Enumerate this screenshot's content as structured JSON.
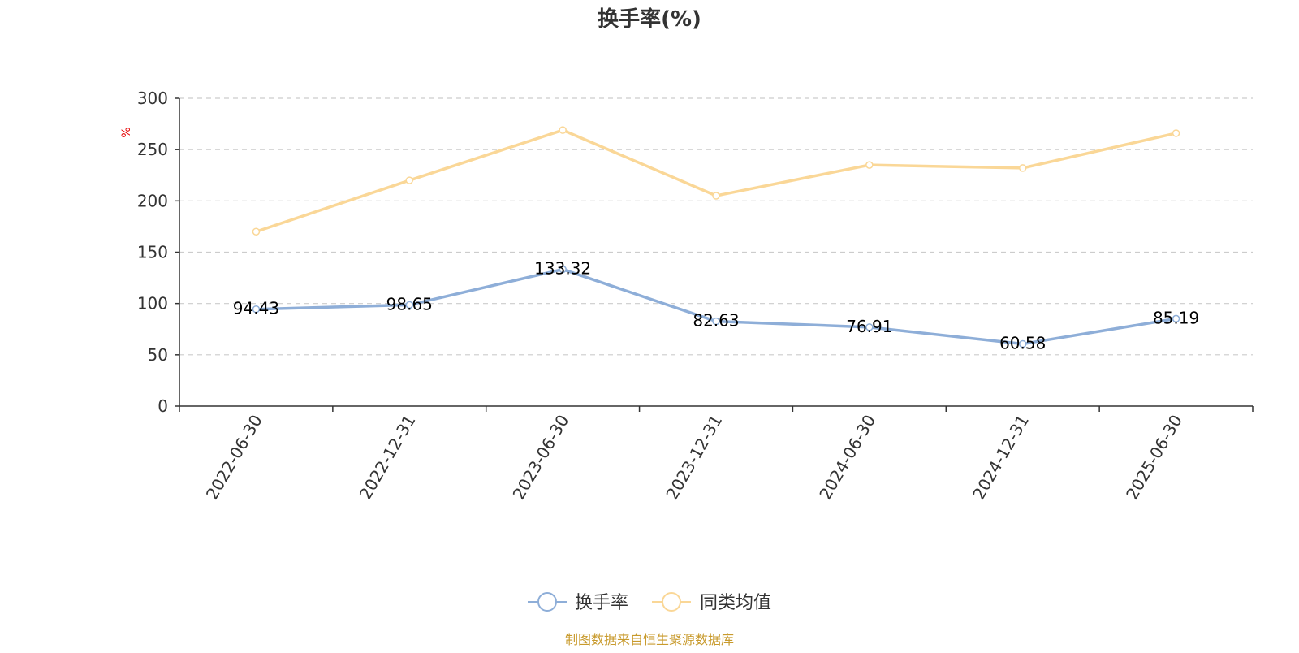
{
  "chart_data": {
    "type": "line",
    "title": "换手率(%)",
    "unit_label": "%",
    "categories": [
      "2022-06-30",
      "2022-12-31",
      "2023-06-30",
      "2023-12-31",
      "2024-06-30",
      "2024-12-31",
      "2025-06-30"
    ],
    "series": [
      {
        "name": "换手率",
        "color": "#8eaed8",
        "values": [
          94.43,
          98.65,
          133.32,
          82.63,
          76.91,
          60.58,
          85.19
        ],
        "data_labels": [
          "94.43",
          "98.65",
          "133.32",
          "82.63",
          "76.91",
          "60.58",
          "85.19"
        ]
      },
      {
        "name": "同类均值",
        "color": "#fad797",
        "values": [
          170,
          220,
          269,
          205,
          235,
          232,
          266
        ]
      }
    ],
    "ylim": [
      0,
      300
    ],
    "yticks": [
      0,
      50,
      100,
      150,
      200,
      250,
      300
    ],
    "ytick_labels": [
      "0",
      "50",
      "100",
      "150",
      "200",
      "250",
      "300"
    ],
    "grid": true,
    "legend_position": "bottom-center",
    "source": "制图数据来自恒生聚源数据库"
  }
}
